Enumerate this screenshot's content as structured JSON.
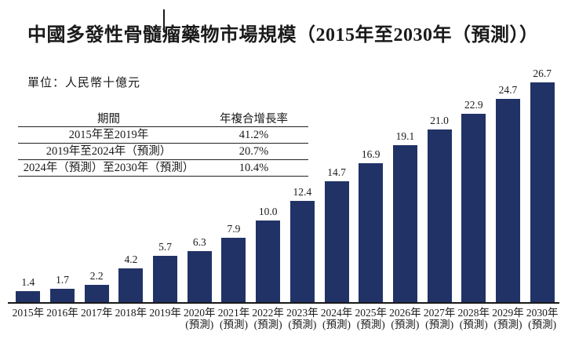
{
  "title": "中國多發性骨髓瘤藥物市場規模（2015年至2030年（預測））",
  "unit_label": "單位：人民幣十億元",
  "cagr_table": {
    "header_period": "期間",
    "header_cagr": "年複合增長率",
    "rows": [
      {
        "period": "2015年至2019年",
        "cagr": "41.2%"
      },
      {
        "period": "2019年至2024年（預測）",
        "cagr": "20.7%"
      },
      {
        "period": "2024年（預測）至2030年（預測）",
        "cagr": "10.4%"
      }
    ]
  },
  "chart_data": {
    "type": "bar",
    "title": "中國多發性骨髓瘤藥物市場規模（2015年至2030年（預測））",
    "unit": "人民幣十億元",
    "xlabel": "",
    "ylabel": "人民幣十億元",
    "ylim": [
      0,
      26.7
    ],
    "grid": false,
    "legend": "none",
    "bar_color": "#213266",
    "categories": [
      "2015年",
      "2016年",
      "2017年",
      "2018年",
      "2019年",
      "2020年(預測)",
      "2021年(預測)",
      "2022年(預測)",
      "2023年(預測)",
      "2024年(預測)",
      "2025年(預測)",
      "2026年(預測)",
      "2027年(預測)",
      "2028年(預測)",
      "2029年(預測)",
      "2030年(預測)"
    ],
    "values": [
      1.4,
      1.7,
      2.2,
      4.2,
      5.7,
      6.3,
      7.9,
      10.0,
      12.4,
      14.7,
      16.9,
      19.1,
      21.0,
      22.9,
      24.7,
      26.7
    ],
    "bars": [
      {
        "year": "2015年",
        "forecast_note": "",
        "value": 1.4,
        "label": "1.4"
      },
      {
        "year": "2016年",
        "forecast_note": "",
        "value": 1.7,
        "label": "1.7"
      },
      {
        "year": "2017年",
        "forecast_note": "",
        "value": 2.2,
        "label": "2.2"
      },
      {
        "year": "2018年",
        "forecast_note": "",
        "value": 4.2,
        "label": "4.2"
      },
      {
        "year": "2019年",
        "forecast_note": "",
        "value": 5.7,
        "label": "5.7"
      },
      {
        "year": "2020年",
        "forecast_note": "(預測)",
        "value": 6.3,
        "label": "6.3"
      },
      {
        "year": "2021年",
        "forecast_note": "(預測)",
        "value": 7.9,
        "label": "7.9"
      },
      {
        "year": "2022年",
        "forecast_note": "(預測)",
        "value": 10.0,
        "label": "10.0"
      },
      {
        "year": "2023年",
        "forecast_note": "(預測)",
        "value": 12.4,
        "label": "12.4"
      },
      {
        "year": "2024年",
        "forecast_note": "(預測)",
        "value": 14.7,
        "label": "14.7"
      },
      {
        "year": "2025年",
        "forecast_note": "(預測)",
        "value": 16.9,
        "label": "16.9"
      },
      {
        "year": "2026年",
        "forecast_note": "(預測)",
        "value": 19.1,
        "label": "19.1"
      },
      {
        "year": "2027年",
        "forecast_note": "(預測)",
        "value": 21.0,
        "label": "21.0"
      },
      {
        "year": "2028年",
        "forecast_note": "(預測)",
        "value": 22.9,
        "label": "22.9"
      },
      {
        "year": "2029年",
        "forecast_note": "(預測)",
        "value": 24.7,
        "label": "24.7"
      },
      {
        "year": "2030年",
        "forecast_note": "(預測)",
        "value": 26.7,
        "label": "26.7"
      }
    ]
  }
}
